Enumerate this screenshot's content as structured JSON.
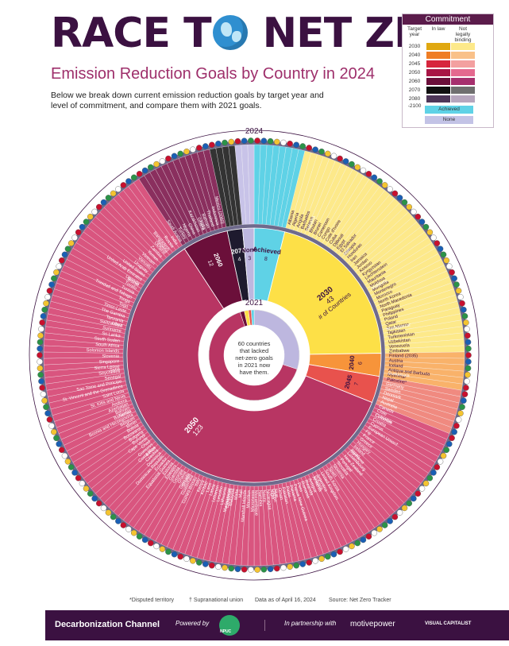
{
  "header": {
    "title_part1": "RACE T",
    "title_part2": " NET ZERO",
    "subtitle": "Emission Reduction Goals by Country in 2024",
    "description": "Below we break down current emission reduction goals by target year and level of commitment, and compare them with 2021 goals."
  },
  "legend": {
    "title": "Commitment",
    "col_target": "Target year",
    "col_law": "In law",
    "col_nonbinding": "Not legally binding",
    "rows": [
      {
        "year": "2030",
        "law": "#e0a810",
        "nonbinding": "#fde98a"
      },
      {
        "year": "2040",
        "law": "#ef7d24",
        "nonbinding": "#f9c189"
      },
      {
        "year": "2045",
        "law": "#d7263d",
        "nonbinding": "#f3a0a0"
      },
      {
        "year": "2050",
        "law": "#a81545",
        "nonbinding": "#e4698f"
      },
      {
        "year": "2060",
        "law": "#6b0f3a",
        "nonbinding": "#a6306e"
      },
      {
        "year": "2070",
        "law": "#111111",
        "nonbinding": "#6f6f6f"
      },
      {
        "year": "2080 -2100",
        "law": "#4e3658",
        "nonbinding": "#b6a6bd"
      }
    ],
    "achieved_label": "Achieved",
    "achieved_color": "#5fd2e6",
    "none_label": "None",
    "none_color": "#c3c3e6"
  },
  "chart_data": {
    "type": "pie",
    "ring_label_2024": "2024",
    "ring_label_2021": "2021",
    "categories": [
      "Achieved",
      "2030",
      "2040",
      "2045",
      "2050",
      "2060",
      "2070",
      "None"
    ],
    "colors": [
      "#5fd2e6",
      "#fde047",
      "#f7943a",
      "#e8524d",
      "#b83563",
      "#6b0f3a",
      "#1e1a2e",
      "#bdb7df"
    ],
    "series_2024": [
      {
        "name": "Achieved",
        "label": "Achieved",
        "value": 8
      },
      {
        "name": "2030",
        "label": "2030",
        "value": 43,
        "note": "# of Countries"
      },
      {
        "name": "2040",
        "label": "2040",
        "value": 6
      },
      {
        "name": "2045",
        "label": "2045",
        "value": 7
      },
      {
        "name": "2050",
        "label": "2050",
        "value": 123
      },
      {
        "name": "2060",
        "label": "2060",
        "value": 12
      },
      {
        "name": "2070",
        "label": "2070",
        "value": 4
      },
      {
        "name": "None",
        "label": "None",
        "value": 3
      }
    ],
    "series_2021": [
      {
        "name": "None",
        "value": 60
      },
      {
        "name": "2050",
        "value": 130
      },
      {
        "name": "2060",
        "value": 3
      },
      {
        "name": "2030",
        "value": 3
      },
      {
        "name": "2045",
        "value": 2
      },
      {
        "name": "Achieved",
        "value": 2
      }
    ],
    "center_note": "60 countries that lacked net-zero goals in 2021 now have them.",
    "country_labels_right": [
      "Finland (2035)",
      "Austria",
      "Iceland",
      "Antigua and Barbuda",
      "Myanmar",
      "Palestine*",
      "Germany",
      "Sweden",
      "Denmark",
      "Nepal",
      "Australia",
      "Canada",
      "Chile",
      "Colombia",
      "Croatia",
      "Cyprus",
      "European Union†",
      "Fiji",
      "France",
      "Greece",
      "Hungary",
      "Ireland",
      "Japan",
      "Luxembourg",
      "New Zealand",
      "Portugal",
      "Slovakia",
      "Slovenia",
      "Spain",
      "South Korea",
      "United Kingdom",
      "Argentina",
      "Armenia"
    ],
    "country_labels_2030": [
      "Albania",
      "Algeria",
      "Angola",
      "Barbados",
      "Belarus",
      "Bhutan",
      "Brunei",
      "Cameroon",
      "Congo",
      "Cote d'Ivoire",
      "Cuba",
      "Djibouti",
      "Egypt",
      "El Salvador",
      "Ethiopia",
      "Honduras",
      "Iran",
      "Jamaica",
      "Jordan",
      "Kosovo",
      "Kyrgyzstan",
      "Liechtenstein",
      "Mauritania",
      "Moldova",
      "Mongolia",
      "Montenegro",
      "Morocco",
      "North Korea",
      "North Macedonia",
      "Paraguay",
      "Philippines",
      "Poland",
      "Qatar",
      "San Marino",
      "Tajikistan",
      "Turkmenistan",
      "Uzbekistan",
      "Venezuela",
      "Zimbabwe"
    ],
    "country_labels_left": [
      "Antigua",
      "Rwanda",
      "Romania",
      "Peru",
      "Papua New Guinea",
      "Panama",
      "Palau",
      "Pakistan",
      "Oman",
      "Niue",
      "Niger",
      "Nicaragua",
      "Nauru",
      "Namibia",
      "Mozambique",
      "Micronesia",
      "Mauritius",
      "Marshall Islands",
      "Mali",
      "Malta",
      "Malaysia",
      "Madagascar",
      "Lithuania",
      "Lesotho",
      "Lebanon",
      "Latvia",
      "Laos",
      "Kiribati",
      "Kenya",
      "Italy",
      "Guinea-Bissau",
      "Guatemala",
      "Grenada",
      "Ghana",
      "Georgia",
      "Gambia",
      "Eswatini",
      "Estonia",
      "Equatorial Guinea",
      "Ecuador",
      "Dominican Republic",
      "Dominica",
      "Czechia",
      "Costa Rica",
      "Comoros",
      "Chad",
      "Cape Verde",
      "Burundi",
      "Bulgaria",
      "Botswana",
      "Bolivia",
      "Benin",
      "Belgium",
      "Bosnia and Herzegovina",
      "Bahamas",
      "Bahrain",
      "Azerbaijan",
      "Andorra"
    ],
    "country_labels_left_upper": [
      "St. Kitts and Nevis",
      "Saint Lucia",
      "St. Vincent and the Grenadines",
      "Sao Tome and Principe",
      "Senegal",
      "Seychelles",
      "Sierra Leone",
      "Singapore",
      "Slovenia",
      "Solomon Islands",
      "South Africa",
      "South Sudan",
      "Sri Lanka",
      "Suriname",
      "Switzerland",
      "Tanzania",
      "The Gambia",
      "Timor-Leste",
      "Togo",
      "Tonga",
      "Trinidad and Tobago",
      "Tunisia",
      "Tuvalu",
      "Uganda",
      "United Arab Emirates",
      "United States",
      "Uruguay",
      "Vanuatu",
      "Vietnam",
      "Yemen",
      "Zambia",
      "Ukraine",
      "Bangladesh",
      "Russia",
      "India",
      "Saudi Arabia",
      "Turkey",
      "Nigeria",
      "China",
      "Kazakhstan",
      "Ghana",
      "Bahrain",
      "Thailand",
      "Indonesia",
      "Mexico (2060)"
    ],
    "country_labels_top": [
      "India",
      "Nigeria",
      "Brunei",
      "Libya",
      "Syria",
      "Serbia",
      "Belize",
      "Bhutan",
      "Cambodia",
      "Gabon",
      "Guyana",
      "Suriname",
      "Comoros",
      "Guatemala",
      "Madagascar",
      "Maldives",
      "Mali",
      "Panama"
    ]
  },
  "footer": {
    "disputed": "*Disputed territory",
    "supranational": "† Supranational union",
    "data_as_of": "Data as of April 16, 2024",
    "source": "Source: Net Zero Tracker",
    "brand1": "Decarbonization Channel",
    "powered_by": "Powered by",
    "npuc": "NPUC",
    "partnership": "In partnership with",
    "motive": "motivepower",
    "visual": "VISUAL CAPITALIST"
  }
}
